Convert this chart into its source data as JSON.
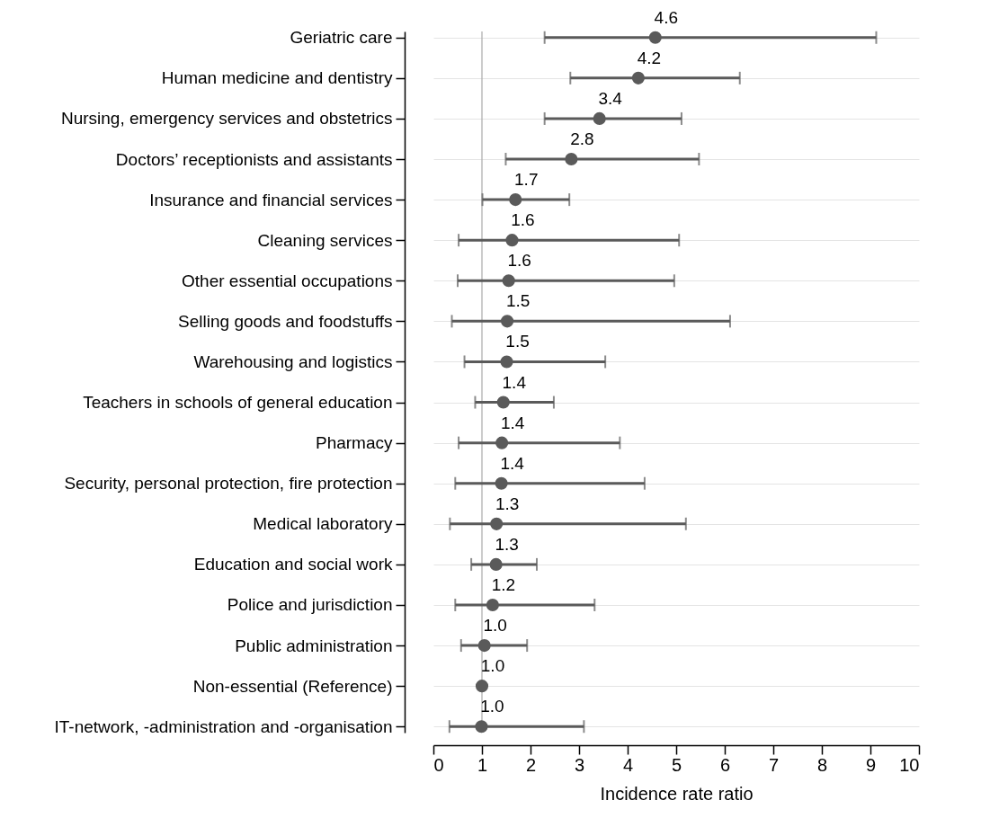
{
  "chart_data": {
    "type": "scatter",
    "xlabel": "Incidence rate ratio",
    "orientation": "horizontal",
    "categories": [
      "Geriatric care",
      "Human medicine and dentistry",
      "Nursing, emergency services and obstetrics",
      "Doctors’ receptionists and assistants",
      "Insurance and financial services",
      "Cleaning services",
      "Other essential occupations",
      "Selling goods and foodstuffs",
      "Warehousing and logistics",
      "Teachers in schools of general education",
      "Pharmacy",
      "Security, personal protection, fire protection",
      "Medical laboratory",
      "Education and social work",
      "Police and jurisdiction",
      "Public administration",
      "Non-essential (Reference)",
      "IT-network, -administration and -organisation"
    ],
    "series": [
      {
        "color": "#5a5a5a",
        "values": [
          4.57,
          4.22,
          3.42,
          2.84,
          1.69,
          1.62,
          1.55,
          1.52,
          1.51,
          1.44,
          1.41,
          1.4,
          1.3,
          1.29,
          1.22,
          1.05,
          1.0,
          0.99
        ],
        "errors": [
          [
            2.29,
            9.12
          ],
          [
            2.82,
            6.31
          ],
          [
            2.29,
            5.11
          ],
          [
            1.49,
            5.47
          ],
          [
            1.01,
            2.8
          ],
          [
            0.52,
            5.06
          ],
          [
            0.5,
            4.96
          ],
          [
            0.38,
            6.11
          ],
          [
            0.64,
            3.54
          ],
          [
            0.86,
            2.48
          ],
          [
            0.52,
            3.84
          ],
          [
            0.45,
            4.35
          ],
          [
            0.34,
            5.2
          ],
          [
            0.78,
            2.13
          ],
          [
            0.45,
            3.32
          ],
          [
            0.57,
            1.93
          ],
          null,
          [
            0.33,
            3.1
          ]
        ],
        "value_labels": [
          "4.6",
          "4.2",
          "3.4",
          "2.8",
          "1.7",
          "1.6",
          "1.6",
          "1.5",
          "1.5",
          "1.4",
          "1.4",
          "1.4",
          "1.3",
          "1.3",
          "1.2",
          "1.0",
          "1.0",
          "1.0"
        ]
      }
    ],
    "xlim": [
      0,
      10
    ],
    "xticks": [
      0,
      1,
      2,
      3,
      4,
      5,
      6,
      7,
      8,
      9,
      10
    ],
    "ref_lines": [
      {
        "axis": "x",
        "value": 1,
        "color": "#aaaaaa"
      }
    ],
    "grid": "y",
    "marker": "circle"
  }
}
